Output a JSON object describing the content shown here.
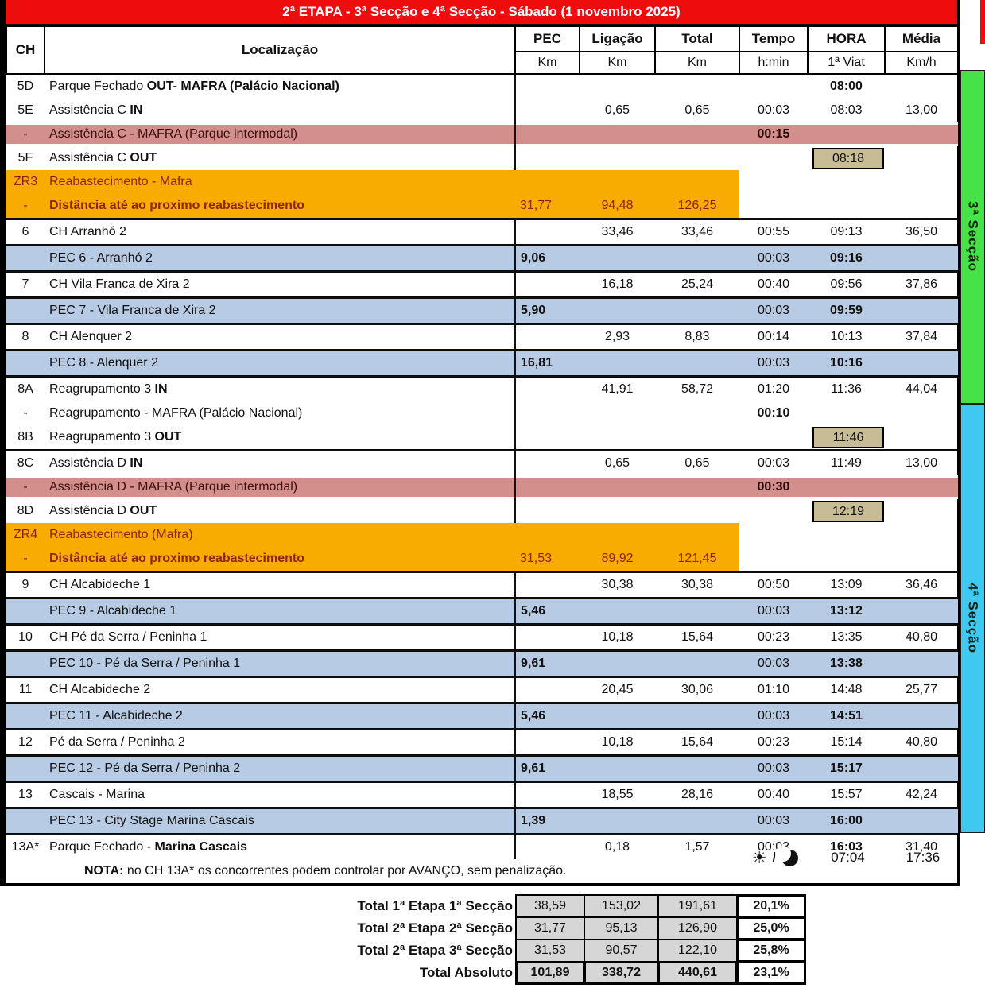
{
  "title": "2ª ETAPA - 3ª Secção e 4ª Secção - Sábado (1 novembro 2025)",
  "columns": {
    "ch": "CH",
    "loc": "Localização",
    "metrics": [
      {
        "label": "PEC",
        "unit": "Km"
      },
      {
        "label": "Ligação",
        "unit": "Km"
      },
      {
        "label": "Total",
        "unit": "Km"
      },
      {
        "label": "Tempo",
        "unit": "h:min"
      },
      {
        "label": "HORA",
        "unit": "1ª Viat"
      },
      {
        "label": "Média",
        "unit": "Km/h"
      }
    ]
  },
  "rows": [
    {
      "ch": "5D",
      "loc": [
        {
          "t": "Parque Fechado "
        },
        {
          "t": "OUT- MAFRA  (Palácio Nacional)",
          "b": true
        }
      ],
      "hora": "08:00",
      "hb": true
    },
    {
      "ch": "5E",
      "loc": [
        {
          "t": "Assistência C "
        },
        {
          "t": "IN",
          "b": true
        }
      ],
      "lig": "0,65",
      "tot": "0,65",
      "tmp": "00:03",
      "hora": "08:03",
      "med": "13,00"
    },
    {
      "ch": "-",
      "st": "red",
      "loc": [
        {
          "t": "Assistência C - MAFRA (Parque intermodal)"
        }
      ],
      "tmp": "00:15"
    },
    {
      "ch": "5F",
      "loc": [
        {
          "t": "Assistência C "
        },
        {
          "t": "OUT",
          "b": true
        }
      ],
      "hora": "08:18",
      "bx": true
    },
    {
      "ch": "ZR3",
      "st": "orange",
      "loc": [
        {
          "t": "Reabastecimento - Mafra"
        }
      ]
    },
    {
      "ch": "-",
      "st": "orange",
      "sep_b": true,
      "loc": [
        {
          "t": "Distância até ao proximo reabastecimento",
          "b": true
        }
      ],
      "pec": "31,77",
      "lig": "94,48",
      "tot": "126,25"
    },
    {
      "ch": "6",
      "loc": [
        {
          "t": "CH Arranhó 2"
        }
      ],
      "lig": "33,46",
      "tot": "33,46",
      "tmp": "00:55",
      "hora": "09:13",
      "med": "36,50"
    },
    {
      "st": "blue",
      "loc": [
        {
          "t": "PEC 6 - Arranhó 2"
        }
      ],
      "pec": "9,06",
      "pb": true,
      "tmp": "00:03",
      "hora": "09:16",
      "hb": true
    },
    {
      "ch": "7",
      "loc": [
        {
          "t": "CH Vila Franca de Xira 2"
        }
      ],
      "lig": "16,18",
      "tot": "25,24",
      "tmp": "00:40",
      "hora": "09:56",
      "med": "37,86"
    },
    {
      "st": "blue",
      "loc": [
        {
          "t": "PEC 7 - Vila Franca de Xira 2"
        }
      ],
      "pec": "5,90",
      "pb": true,
      "tmp": "00:03",
      "hora": "09:59",
      "hb": true
    },
    {
      "ch": "8",
      "loc": [
        {
          "t": "CH Alenquer 2"
        }
      ],
      "lig": "2,93",
      "tot": "8,83",
      "tmp": "00:14",
      "hora": "10:13",
      "med": "37,84"
    },
    {
      "st": "blue",
      "loc": [
        {
          "t": "PEC 8 - Alenquer 2"
        }
      ],
      "pec": "16,81",
      "pb": true,
      "tmp": "00:03",
      "hora": "10:16",
      "hb": true
    },
    {
      "ch": "8A",
      "loc": [
        {
          "t": "Reagrupamento 3 "
        },
        {
          "t": "IN",
          "b": true
        }
      ],
      "lig": "41,91",
      "tot": "58,72",
      "tmp": "01:20",
      "hora": "11:36",
      "med": "44,04"
    },
    {
      "ch": "-",
      "loc": [
        {
          "t": "Reagrupamento - MAFRA (Palácio Nacional)"
        }
      ],
      "tmp": "00:10",
      "tb": true
    },
    {
      "ch": "8B",
      "loc": [
        {
          "t": "Reagrupamento 3 "
        },
        {
          "t": "OUT",
          "b": true
        }
      ],
      "hora": "11:46",
      "bx": true
    },
    {
      "ch": "8C",
      "sep_t": true,
      "loc": [
        {
          "t": "Assistência D "
        },
        {
          "t": "IN",
          "b": true
        }
      ],
      "lig": "0,65",
      "tot": "0,65",
      "tmp": "00:03",
      "hora": "11:49",
      "med": "13,00"
    },
    {
      "ch": "-",
      "st": "red",
      "loc": [
        {
          "t": "Assistência D - MAFRA (Parque intermodal)"
        }
      ],
      "tmp": "00:30"
    },
    {
      "ch": "8D",
      "loc": [
        {
          "t": "Assistência D "
        },
        {
          "t": "OUT",
          "b": true
        }
      ],
      "hora": "12:19",
      "bx": true
    },
    {
      "ch": "ZR4",
      "st": "orange",
      "loc": [
        {
          "t": "Reabastecimento (Mafra)"
        }
      ]
    },
    {
      "ch": "-",
      "st": "orange",
      "sep_b": true,
      "loc": [
        {
          "t": "Distância até ao proximo reabastecimento",
          "b": true
        }
      ],
      "pec": "31,53",
      "lig": "89,92",
      "tot": "121,45"
    },
    {
      "ch": "9",
      "loc": [
        {
          "t": "CH Alcabideche 1"
        }
      ],
      "lig": "30,38",
      "tot": "30,38",
      "tmp": "00:50",
      "hora": "13:09",
      "med": "36,46"
    },
    {
      "st": "blue",
      "loc": [
        {
          "t": "PEC 9 - Alcabideche 1"
        }
      ],
      "pec": "5,46",
      "pb": true,
      "tmp": "00:03",
      "hora": "13:12",
      "hb": true
    },
    {
      "ch": "10",
      "loc": [
        {
          "t": "CH Pé da Serra / Peninha 1"
        }
      ],
      "lig": "10,18",
      "tot": "15,64",
      "tmp": "00:23",
      "hora": "13:35",
      "med": "40,80"
    },
    {
      "st": "blue",
      "loc": [
        {
          "t": "PEC 10 - Pé da Serra / Peninha 1"
        }
      ],
      "pec": "9,61",
      "pb": true,
      "tmp": "00:03",
      "hora": "13:38",
      "hb": true
    },
    {
      "ch": "11",
      "loc": [
        {
          "t": "CH Alcabideche 2"
        }
      ],
      "lig": "20,45",
      "tot": "30,06",
      "tmp": "01:10",
      "hora": "14:48",
      "med": "25,77"
    },
    {
      "st": "blue",
      "loc": [
        {
          "t": "PEC 11 - Alcabideche 2"
        }
      ],
      "pec": "5,46",
      "pb": true,
      "tmp": "00:03",
      "hora": "14:51",
      "hb": true
    },
    {
      "ch": "12",
      "loc": [
        {
          "t": "Pé da Serra  / Peninha 2"
        }
      ],
      "lig": "10,18",
      "tot": "15,64",
      "tmp": "00:23",
      "hora": "15:14",
      "med": "40,80"
    },
    {
      "st": "blue",
      "loc": [
        {
          "t": "PEC 12 - Pé da Serra / Peninha 2"
        }
      ],
      "pec": "9,61",
      "pb": true,
      "tmp": "00:03",
      "hora": "15:17",
      "hb": true
    },
    {
      "ch": "13",
      "loc": [
        {
          "t": "Cascais - Marina"
        }
      ],
      "lig": "18,55",
      "tot": "28,16",
      "tmp": "00:40",
      "hora": "15:57",
      "med": "42,24"
    },
    {
      "st": "blue",
      "loc": [
        {
          "t": "PEC 13 - City Stage Marina Cascais"
        }
      ],
      "pec": "1,39",
      "pb": true,
      "tmp": "00:03",
      "hora": "16:00",
      "hb": true
    },
    {
      "ch": "13A*",
      "loc": [
        {
          "t": "Parque Fechado - "
        },
        {
          "t": "Marina Cascais",
          "b": true
        }
      ],
      "lig": "0,18",
      "tot": "1,57",
      "tmp": "00:03",
      "hora": "16:03",
      "hb": true,
      "med": "31,40"
    },
    {
      "st": "note",
      "loc": [
        {
          "t": "NOTA:",
          "b": true
        },
        {
          "t": " no CH 13A* os concorrentes podem controlar por AVANÇO, sem penalização."
        }
      ]
    }
  ],
  "sections": [
    {
      "label": "3ª Secção",
      "color": "#47e247"
    },
    {
      "label": "4ª Secção",
      "color": "#3fc8f0"
    }
  ],
  "daylight": {
    "sun_glyph": "☀",
    "separator": "/",
    "sunrise": "07:04",
    "sunset": "17:36"
  },
  "totals": [
    {
      "label": "Total 1ª Etapa 1ª Secção",
      "pec": "38,59",
      "ligacao": "153,02",
      "total": "191,61",
      "pct": "20,1%",
      "bold": false
    },
    {
      "label": "Total 2ª Etapa 2ª Secção",
      "pec": "31,77",
      "ligacao": "95,13",
      "total": "126,90",
      "pct": "25,0%",
      "bold": false
    },
    {
      "label": "Total 2ª Etapa 3ª Secção",
      "pec": "31,53",
      "ligacao": "90,57",
      "total": "122,10",
      "pct": "25,8%",
      "bold": false
    },
    {
      "label": "Total Absoluto",
      "pec": "101,89",
      "ligacao": "338,72",
      "total": "440,61",
      "pct": "23,1%",
      "bold": true
    }
  ],
  "colors": {
    "header_red": "#ee0d0d",
    "assistance_row": "#d28f8b",
    "refuel_row": "#f8ab00",
    "pec_row": "#b8cbe4",
    "time_box": "#c8bc96",
    "section3_green": "#47e247",
    "section4_cyan": "#3fc8f0",
    "totals_grey": "#d6d6d6",
    "refuel_text": "#8a2703"
  }
}
